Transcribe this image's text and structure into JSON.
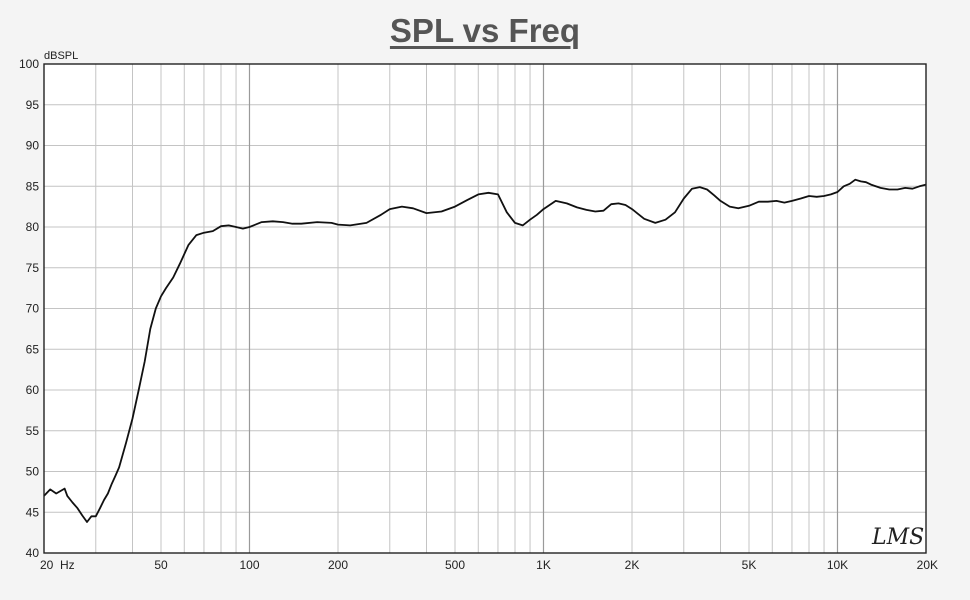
{
  "chart_data": {
    "type": "line",
    "title": "SPL vs Freq",
    "xlabel": "Hz",
    "ylabel": "dBSPL",
    "x_scale": "log",
    "xlim": [
      20,
      20000
    ],
    "ylim": [
      40,
      100
    ],
    "x_ticks": [
      {
        "value": 20,
        "label": "20"
      },
      {
        "value": 50,
        "label": "50"
      },
      {
        "value": 100,
        "label": "100"
      },
      {
        "value": 200,
        "label": "200"
      },
      {
        "value": 500,
        "label": "500"
      },
      {
        "value": 1000,
        "label": "1K"
      },
      {
        "value": 2000,
        "label": "2K"
      },
      {
        "value": 5000,
        "label": "5K"
      },
      {
        "value": 10000,
        "label": "10K"
      },
      {
        "value": 20000,
        "label": "20K"
      }
    ],
    "y_ticks": [
      40,
      45,
      50,
      55,
      60,
      65,
      70,
      75,
      80,
      85,
      90,
      95,
      100
    ],
    "grid": true,
    "logo": "LMS",
    "series": [
      {
        "color": "#111111",
        "x": [
          20,
          21,
          22,
          23.5,
          24,
          25,
          26,
          27,
          28,
          29,
          30,
          31,
          32,
          33,
          34,
          35,
          36,
          38,
          40,
          42,
          44,
          46,
          48,
          50,
          52,
          55,
          58,
          62,
          66,
          70,
          75,
          80,
          85,
          90,
          95,
          100,
          110,
          120,
          130,
          140,
          150,
          170,
          190,
          200,
          220,
          250,
          280,
          300,
          330,
          360,
          400,
          450,
          500,
          550,
          600,
          650,
          700,
          750,
          800,
          850,
          900,
          950,
          1000,
          1100,
          1200,
          1300,
          1400,
          1500,
          1600,
          1700,
          1800,
          1900,
          2000,
          2200,
          2400,
          2600,
          2800,
          3000,
          3200,
          3400,
          3600,
          3800,
          4000,
          4300,
          4600,
          5000,
          5400,
          5800,
          6200,
          6600,
          7000,
          7500,
          8000,
          8500,
          9000,
          9500,
          10000,
          10500,
          11000,
          11500,
          12000,
          12500,
          13000,
          14000,
          15000,
          16000,
          17000,
          18000,
          19000,
          20000
        ],
        "y": [
          47,
          47.8,
          47.3,
          47.9,
          47,
          46.2,
          45.5,
          44.6,
          43.8,
          44.5,
          44.5,
          45.5,
          46.5,
          47.3,
          48.5,
          49.5,
          50.5,
          53.5,
          56.5,
          60,
          63.5,
          67.5,
          70,
          71.5,
          72.5,
          73.8,
          75.5,
          77.8,
          79,
          79.3,
          79.5,
          80.1,
          80.2,
          80,
          79.8,
          80,
          80.6,
          80.7,
          80.6,
          80.4,
          80.4,
          80.6,
          80.5,
          80.3,
          80.2,
          80.5,
          81.5,
          82.2,
          82.5,
          82.3,
          81.7,
          81.9,
          82.5,
          83.3,
          84,
          84.2,
          84,
          81.8,
          80.5,
          80.2,
          80.9,
          81.5,
          82.2,
          83.2,
          82.9,
          82.4,
          82.1,
          81.9,
          82,
          82.8,
          82.9,
          82.7,
          82.2,
          81,
          80.5,
          80.9,
          81.8,
          83.5,
          84.7,
          84.9,
          84.6,
          83.9,
          83.2,
          82.5,
          82.3,
          82.6,
          83.1,
          83.1,
          83.2,
          83,
          83.2,
          83.5,
          83.8,
          83.7,
          83.8,
          84,
          84.3,
          85,
          85.3,
          85.8,
          85.6,
          85.5,
          85.2,
          84.8,
          84.6,
          84.6,
          84.8,
          84.7,
          85,
          85.2
        ]
      }
    ]
  }
}
